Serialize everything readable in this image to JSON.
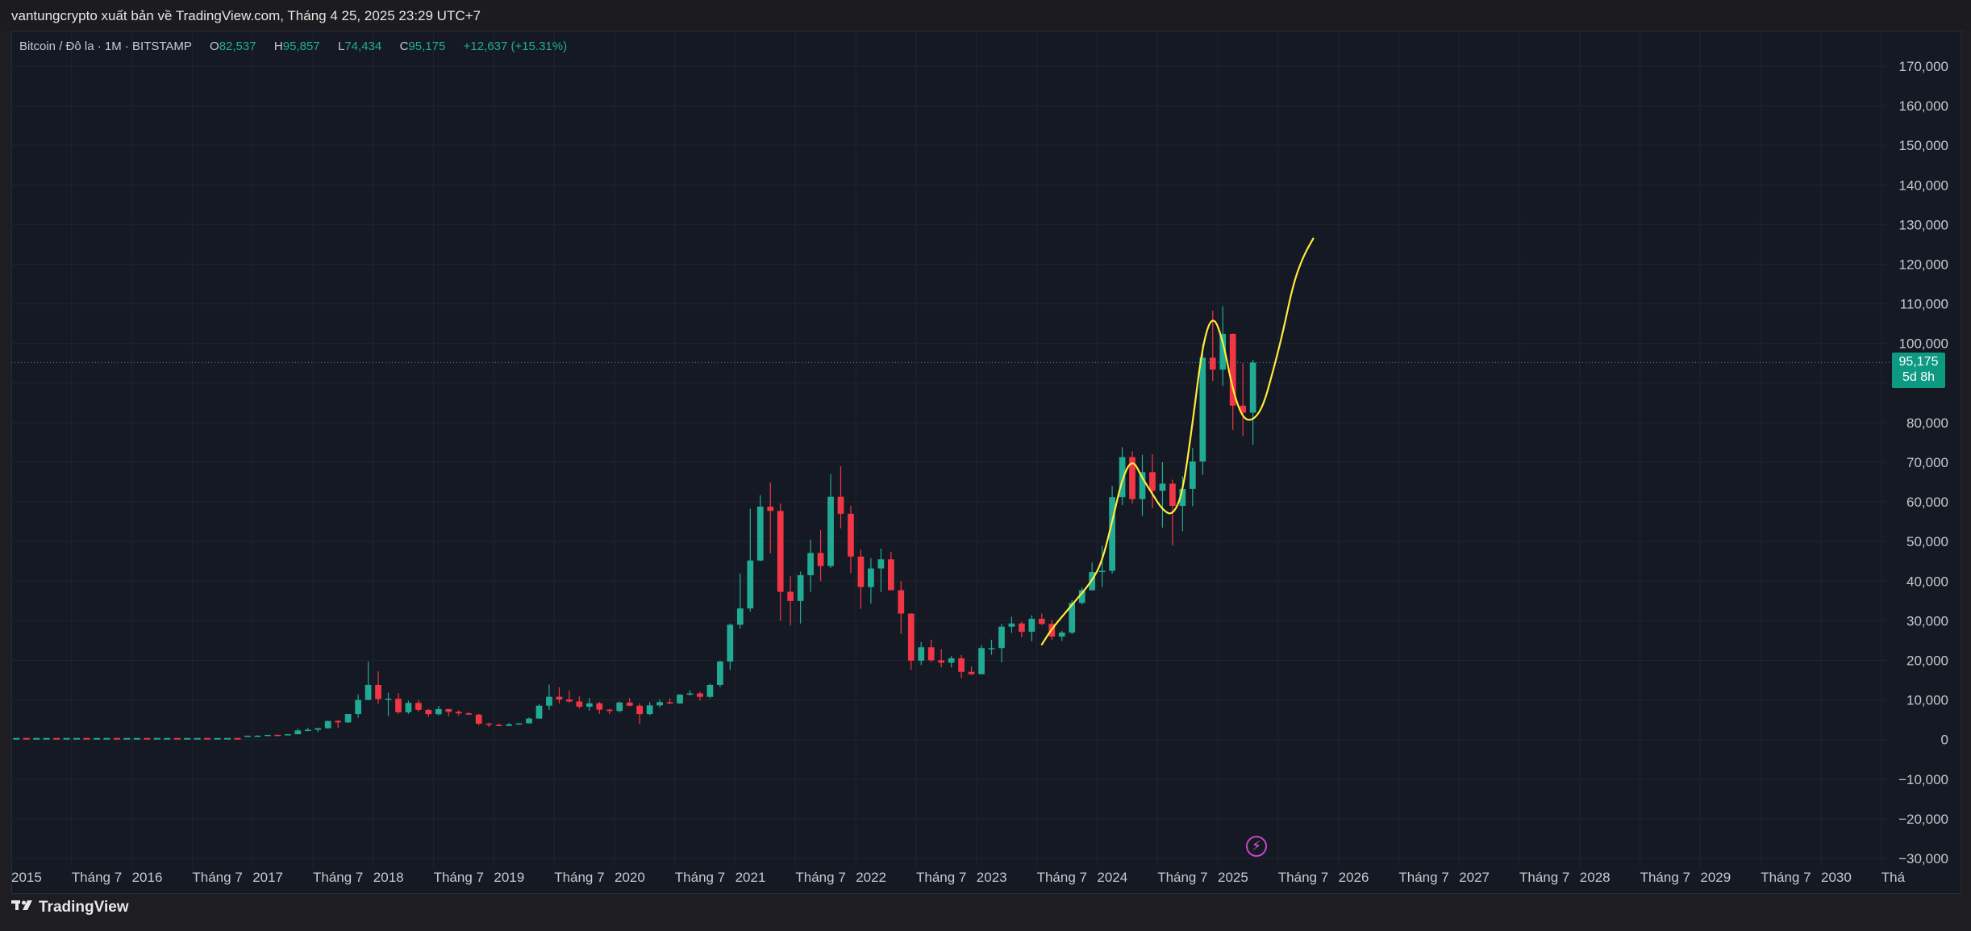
{
  "header": {
    "publish_text": "vantungcrypto xuất bản về TradingView.com, Tháng 4 25, 2025 23:29 UTC+7"
  },
  "legend": {
    "symbol": "Bitcoin / Đô la · 1M · BITSTAMP",
    "open_label": "O",
    "open_value": "82,537",
    "high_label": "H",
    "high_value": "95,857",
    "low_label": "L",
    "low_value": "74,434",
    "close_label": "C",
    "close_value": "95,175",
    "change": "+12,637 (+15.31%)"
  },
  "last_price": {
    "value": "95,175",
    "countdown": "5d 8h"
  },
  "footer": {
    "brand": "TradingView"
  },
  "colors": {
    "up": "#22ab94",
    "down": "#f23645",
    "drawing": "#ffeb3b",
    "background": "#151923",
    "grid": "#1f2430",
    "price_line": "#22ab94"
  },
  "chart_data": {
    "type": "candlestick",
    "symbol": "Bitcoin / Đô la",
    "interval": "1M",
    "exchange": "BITSTAMP",
    "y_ticks": [
      170000,
      160000,
      150000,
      140000,
      130000,
      120000,
      110000,
      100000,
      90000,
      80000,
      70000,
      60000,
      50000,
      40000,
      30000,
      20000,
      10000,
      0,
      -10000,
      -20000,
      -30000
    ],
    "y_tick_labels": [
      "170,000",
      "160,000",
      "150,000",
      "140,000",
      "130,000",
      "120,000",
      "110,000",
      "100,000",
      "",
      "80,000",
      "70,000",
      "60,000",
      "50,000",
      "40,000",
      "30,000",
      "20,000",
      "10,000",
      "0",
      "−10,000",
      "−20,000",
      "−30,000"
    ],
    "ylim": [
      -30000,
      170000
    ],
    "x_tick_labels": [
      "2015",
      "Tháng 7",
      "2016",
      "Tháng 7",
      "2017",
      "Tháng 7",
      "2018",
      "Tháng 7",
      "2019",
      "Tháng 7",
      "2020",
      "Tháng 7",
      "2021",
      "Tháng 7",
      "2022",
      "Tháng 7",
      "2023",
      "Tháng 7",
      "2024",
      "Tháng 7",
      "2025",
      "Tháng 7",
      "2026",
      "Tháng 7",
      "2027",
      "Tháng 7",
      "2028",
      "Tháng 7",
      "2029",
      "Tháng 7",
      "2030",
      "Thá"
    ],
    "x_ticks": [
      "2015-01",
      "2015-07",
      "2016-01",
      "2016-07",
      "2017-01",
      "2017-07",
      "2018-01",
      "2018-07",
      "2019-01",
      "2019-07",
      "2020-01",
      "2020-07",
      "2021-01",
      "2021-07",
      "2022-01",
      "2022-07",
      "2023-01",
      "2023-07",
      "2024-01",
      "2024-07",
      "2025-01",
      "2025-07",
      "2026-01",
      "2026-07",
      "2027-01",
      "2027-07",
      "2028-01",
      "2028-07",
      "2029-01",
      "2029-07",
      "2030-01",
      "2030-07"
    ],
    "xlim": [
      "2015-01",
      "2030-10"
    ],
    "last_close": 95175,
    "candles": [
      [
        "2016-12",
        745,
        1000,
        745,
        970
      ],
      [
        "2017-01",
        970,
        1100,
        760,
        970
      ],
      [
        "2017-02",
        970,
        1200,
        930,
        1180
      ],
      [
        "2017-03",
        1180,
        1300,
        900,
        1080
      ],
      [
        "2017-04",
        1080,
        1350,
        1060,
        1350
      ],
      [
        "2017-05",
        1350,
        2760,
        1340,
        2300
      ],
      [
        "2017-06",
        2300,
        2980,
        2100,
        2480
      ],
      [
        "2017-07",
        2480,
        2900,
        1800,
        2870
      ],
      [
        "2017-08",
        2870,
        4700,
        2700,
        4700
      ],
      [
        "2017-09",
        4700,
        4980,
        2970,
        4340
      ],
      [
        "2017-10",
        4340,
        6450,
        4150,
        6450
      ],
      [
        "2017-11",
        6450,
        11400,
        5500,
        10000
      ],
      [
        "2017-12",
        10000,
        19700,
        10000,
        13800
      ],
      [
        "2018-01",
        13800,
        17200,
        9000,
        10200
      ],
      [
        "2018-02",
        10200,
        11800,
        5900,
        10300
      ],
      [
        "2018-03",
        10300,
        11700,
        6500,
        6900
      ],
      [
        "2018-04",
        6900,
        9800,
        6500,
        9250
      ],
      [
        "2018-05",
        9250,
        9990,
        7000,
        7500
      ],
      [
        "2018-06",
        7500,
        7750,
        5750,
        6400
      ],
      [
        "2018-07",
        6400,
        8500,
        6100,
        7700
      ],
      [
        "2018-08",
        7700,
        7750,
        5900,
        7000
      ],
      [
        "2018-09",
        7000,
        7400,
        6100,
        6620
      ],
      [
        "2018-10",
        6620,
        7000,
        6200,
        6300
      ],
      [
        "2018-11",
        6300,
        6500,
        3600,
        4000
      ],
      [
        "2018-12",
        4000,
        4300,
        3200,
        3700
      ],
      [
        "2019-01",
        3700,
        4100,
        3400,
        3450
      ],
      [
        "2019-02",
        3450,
        4200,
        3400,
        3820
      ],
      [
        "2019-03",
        3820,
        4100,
        3700,
        4100
      ],
      [
        "2019-04",
        4100,
        5600,
        4050,
        5300
      ],
      [
        "2019-05",
        5300,
        9000,
        5300,
        8550
      ],
      [
        "2019-06",
        8550,
        13900,
        7500,
        10800
      ],
      [
        "2019-07",
        10800,
        13200,
        9100,
        10100
      ],
      [
        "2019-08",
        10100,
        12300,
        9400,
        9600
      ],
      [
        "2019-09",
        9600,
        10900,
        7800,
        8300
      ],
      [
        "2019-10",
        8300,
        10500,
        7300,
        9150
      ],
      [
        "2019-11",
        9150,
        9500,
        6500,
        7550
      ],
      [
        "2019-12",
        7550,
        7750,
        6400,
        7200
      ],
      [
        "2020-01",
        7200,
        9600,
        6850,
        9350
      ],
      [
        "2020-02",
        9350,
        10500,
        8450,
        8540
      ],
      [
        "2020-03",
        8540,
        9200,
        3850,
        6430
      ],
      [
        "2020-04",
        6430,
        9480,
        6150,
        8630
      ],
      [
        "2020-05",
        8630,
        10080,
        8100,
        9450
      ],
      [
        "2020-06",
        9450,
        10400,
        8900,
        9140
      ],
      [
        "2020-07",
        9140,
        11450,
        8950,
        11350
      ],
      [
        "2020-08",
        11350,
        12470,
        11100,
        11650
      ],
      [
        "2020-09",
        11650,
        12050,
        9850,
        10780
      ],
      [
        "2020-10",
        10780,
        14100,
        10400,
        13800
      ],
      [
        "2020-11",
        13800,
        19900,
        13200,
        19700
      ],
      [
        "2020-12",
        19700,
        29300,
        17600,
        28990
      ],
      [
        "2021-01",
        28990,
        41900,
        28000,
        33100
      ],
      [
        "2021-02",
        33100,
        58300,
        32300,
        45200
      ],
      [
        "2021-03",
        45200,
        61700,
        45000,
        58800
      ],
      [
        "2021-04",
        58800,
        64900,
        47000,
        57700
      ],
      [
        "2021-05",
        57700,
        59600,
        30000,
        37300
      ],
      [
        "2021-06",
        37300,
        41300,
        28800,
        35000
      ],
      [
        "2021-07",
        35000,
        42400,
        29300,
        41500
      ],
      [
        "2021-08",
        41500,
        50500,
        37300,
        47100
      ],
      [
        "2021-09",
        47100,
        52900,
        40000,
        43800
      ],
      [
        "2021-10",
        43800,
        67000,
        43300,
        61300
      ],
      [
        "2021-11",
        61300,
        69000,
        53300,
        57000
      ],
      [
        "2021-12",
        57000,
        59000,
        42000,
        46200
      ],
      [
        "2022-01",
        46200,
        47900,
        33000,
        38500
      ],
      [
        "2022-02",
        38500,
        45800,
        34300,
        43200
      ],
      [
        "2022-03",
        43200,
        48200,
        37200,
        45500
      ],
      [
        "2022-04",
        45500,
        47400,
        37700,
        37700
      ],
      [
        "2022-05",
        37700,
        40000,
        26700,
        31800
      ],
      [
        "2022-06",
        31800,
        31900,
        17600,
        19900
      ],
      [
        "2022-07",
        19900,
        24600,
        18800,
        23300
      ],
      [
        "2022-08",
        23300,
        25200,
        19600,
        20000
      ],
      [
        "2022-09",
        20000,
        22800,
        18200,
        19400
      ],
      [
        "2022-10",
        19400,
        21100,
        18200,
        20500
      ],
      [
        "2022-11",
        20500,
        21400,
        15500,
        17100
      ],
      [
        "2022-12",
        17100,
        18400,
        16300,
        16500
      ],
      [
        "2023-01",
        16500,
        23900,
        16500,
        23100
      ],
      [
        "2023-02",
        23100,
        25200,
        21400,
        23100
      ],
      [
        "2023-03",
        23100,
        29200,
        19500,
        28500
      ],
      [
        "2023-04",
        28500,
        31000,
        26900,
        29300
      ],
      [
        "2023-05",
        29300,
        29800,
        25800,
        27200
      ],
      [
        "2023-06",
        27200,
        31400,
        24800,
        30500
      ],
      [
        "2023-07",
        30500,
        31800,
        28900,
        29200
      ],
      [
        "2023-08",
        29200,
        30200,
        25200,
        26000
      ],
      [
        "2023-09",
        26000,
        27500,
        24900,
        27000
      ],
      [
        "2023-10",
        27000,
        35200,
        26600,
        34500
      ],
      [
        "2023-11",
        34500,
        38400,
        34100,
        37700
      ],
      [
        "2023-12",
        37700,
        44700,
        37600,
        42300
      ],
      [
        "2024-01",
        42300,
        48900,
        38500,
        42600
      ],
      [
        "2024-02",
        42600,
        64000,
        41900,
        61200
      ],
      [
        "2024-03",
        61200,
        73800,
        59200,
        71300
      ],
      [
        "2024-04",
        71300,
        72800,
        59600,
        60700
      ],
      [
        "2024-05",
        60700,
        71900,
        56500,
        67500
      ],
      [
        "2024-06",
        67500,
        72000,
        58400,
        62800
      ],
      [
        "2024-07",
        62800,
        70000,
        53500,
        64600
      ],
      [
        "2024-08",
        64600,
        65600,
        49000,
        59000
      ],
      [
        "2024-09",
        59000,
        66500,
        52600,
        63300
      ],
      [
        "2024-10",
        63300,
        73600,
        58900,
        70200
      ],
      [
        "2024-11",
        70200,
        99800,
        66800,
        96400
      ],
      [
        "2024-12",
        96400,
        108300,
        90500,
        93400
      ],
      [
        "2025-01",
        93400,
        109400,
        89200,
        102400
      ],
      [
        "2025-02",
        102400,
        102500,
        78200,
        84300
      ],
      [
        "2025-03",
        84300,
        95000,
        76600,
        82537
      ],
      [
        "2025-04",
        82537,
        95857,
        74434,
        95175
      ]
    ],
    "annotation": {
      "type": "freehand",
      "color": "#ffeb3b",
      "path": [
        [
          "2023-07",
          24000
        ],
        [
          "2023-08",
          28000
        ],
        [
          "2023-10",
          34000
        ],
        [
          "2023-12",
          40000
        ],
        [
          "2024-01",
          45000
        ],
        [
          "2024-02",
          55000
        ],
        [
          "2024-03",
          66000
        ],
        [
          "2024-04",
          71000
        ],
        [
          "2024-05",
          66000
        ],
        [
          "2024-06",
          62000
        ],
        [
          "2024-07",
          58000
        ],
        [
          "2024-08",
          56500
        ],
        [
          "2024-09",
          62000
        ],
        [
          "2024-10",
          80000
        ],
        [
          "2024-11",
          100000
        ],
        [
          "2024-12",
          107500
        ],
        [
          "2025-01",
          101000
        ],
        [
          "2025-02",
          88000
        ],
        [
          "2025-03",
          81000
        ],
        [
          "2025-04",
          80500
        ],
        [
          "2025-05",
          84000
        ],
        [
          "2025-06",
          93000
        ],
        [
          "2025-07",
          103000
        ],
        [
          "2025-08",
          115000
        ],
        [
          "2025-09",
          122000
        ],
        [
          "2025-10",
          126500
        ]
      ]
    }
  }
}
